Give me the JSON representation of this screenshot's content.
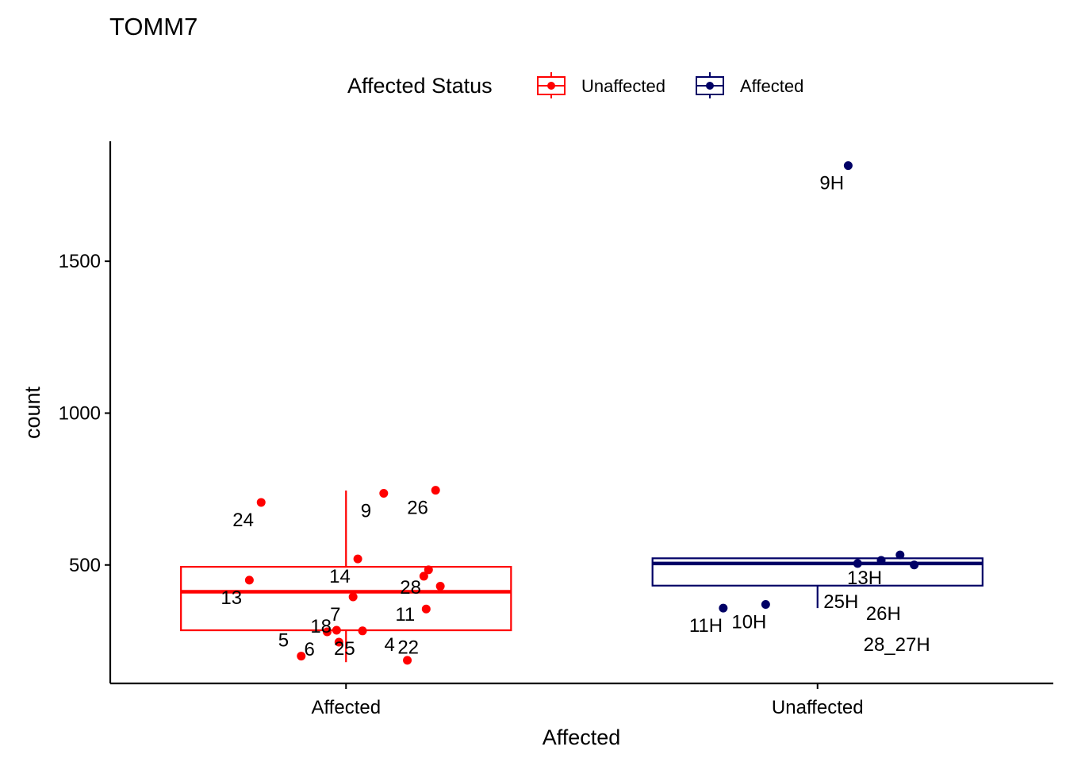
{
  "chart_data": {
    "type": "box",
    "title": "TOMM7",
    "xlabel": "Affected",
    "ylabel": "count",
    "ylim": [
      110,
      1895
    ],
    "yticks": [
      500,
      1000,
      1500
    ],
    "categories": [
      "Affected",
      "Unaffected"
    ],
    "legend": {
      "title": "Affected Status",
      "position": "top",
      "entries": [
        {
          "label": "Unaffected",
          "color": "#ff0000"
        },
        {
          "label": "Affected",
          "color": "#000066"
        }
      ]
    },
    "groups": [
      {
        "category": "Affected",
        "legend_label": "Unaffected",
        "color": "#ff0000",
        "box": {
          "whisker_low": 180,
          "q1": 285,
          "median": 412,
          "q3": 494,
          "whisker_high": 745
        },
        "points": [
          {
            "label": "24",
            "dx": -0.36,
            "y": 706
          },
          {
            "label": "9",
            "dx": 0.16,
            "y": 736
          },
          {
            "label": "26",
            "dx": 0.38,
            "y": 746
          },
          {
            "label": "14",
            "dx": 0.05,
            "y": 520
          },
          {
            "label": "28",
            "dx": 0.35,
            "y": 484
          },
          {
            "label": "13",
            "dx": -0.41,
            "y": 450
          },
          {
            "label": "11",
            "dx": 0.33,
            "y": 463
          },
          {
            "label": "",
            "dx": 0.4,
            "y": 430
          },
          {
            "label": "7",
            "dx": 0.03,
            "y": 395
          },
          {
            "label": "22",
            "dx": 0.34,
            "y": 355
          },
          {
            "label": "25",
            "dx": 0.07,
            "y": 283
          },
          {
            "label": "",
            "dx": -0.04,
            "y": 285
          },
          {
            "label": "6",
            "dx": -0.08,
            "y": 280
          },
          {
            "label": "18",
            "dx": -0.03,
            "y": 246
          },
          {
            "label": "5",
            "dx": -0.19,
            "y": 200
          },
          {
            "label": "4",
            "dx": 0.26,
            "y": 186
          }
        ]
      },
      {
        "category": "Unaffected",
        "legend_label": "Affected",
        "color": "#000066",
        "box": {
          "whisker_low": 358,
          "q1": 432,
          "median": 505,
          "q3": 522,
          "whisker_high": 522
        },
        "points": [
          {
            "label": "9H",
            "dx": 0.13,
            "y": 1815
          },
          {
            "label": "13H",
            "dx": 0.27,
            "y": 515
          },
          {
            "label": "26H",
            "dx": 0.35,
            "y": 533
          },
          {
            "label": "25H",
            "dx": 0.17,
            "y": 505
          },
          {
            "label": "28_27H",
            "dx": 0.41,
            "y": 500
          },
          {
            "label": "10H",
            "dx": -0.22,
            "y": 370
          },
          {
            "label": "11H",
            "dx": -0.4,
            "y": 358
          }
        ]
      }
    ],
    "grid": false
  }
}
